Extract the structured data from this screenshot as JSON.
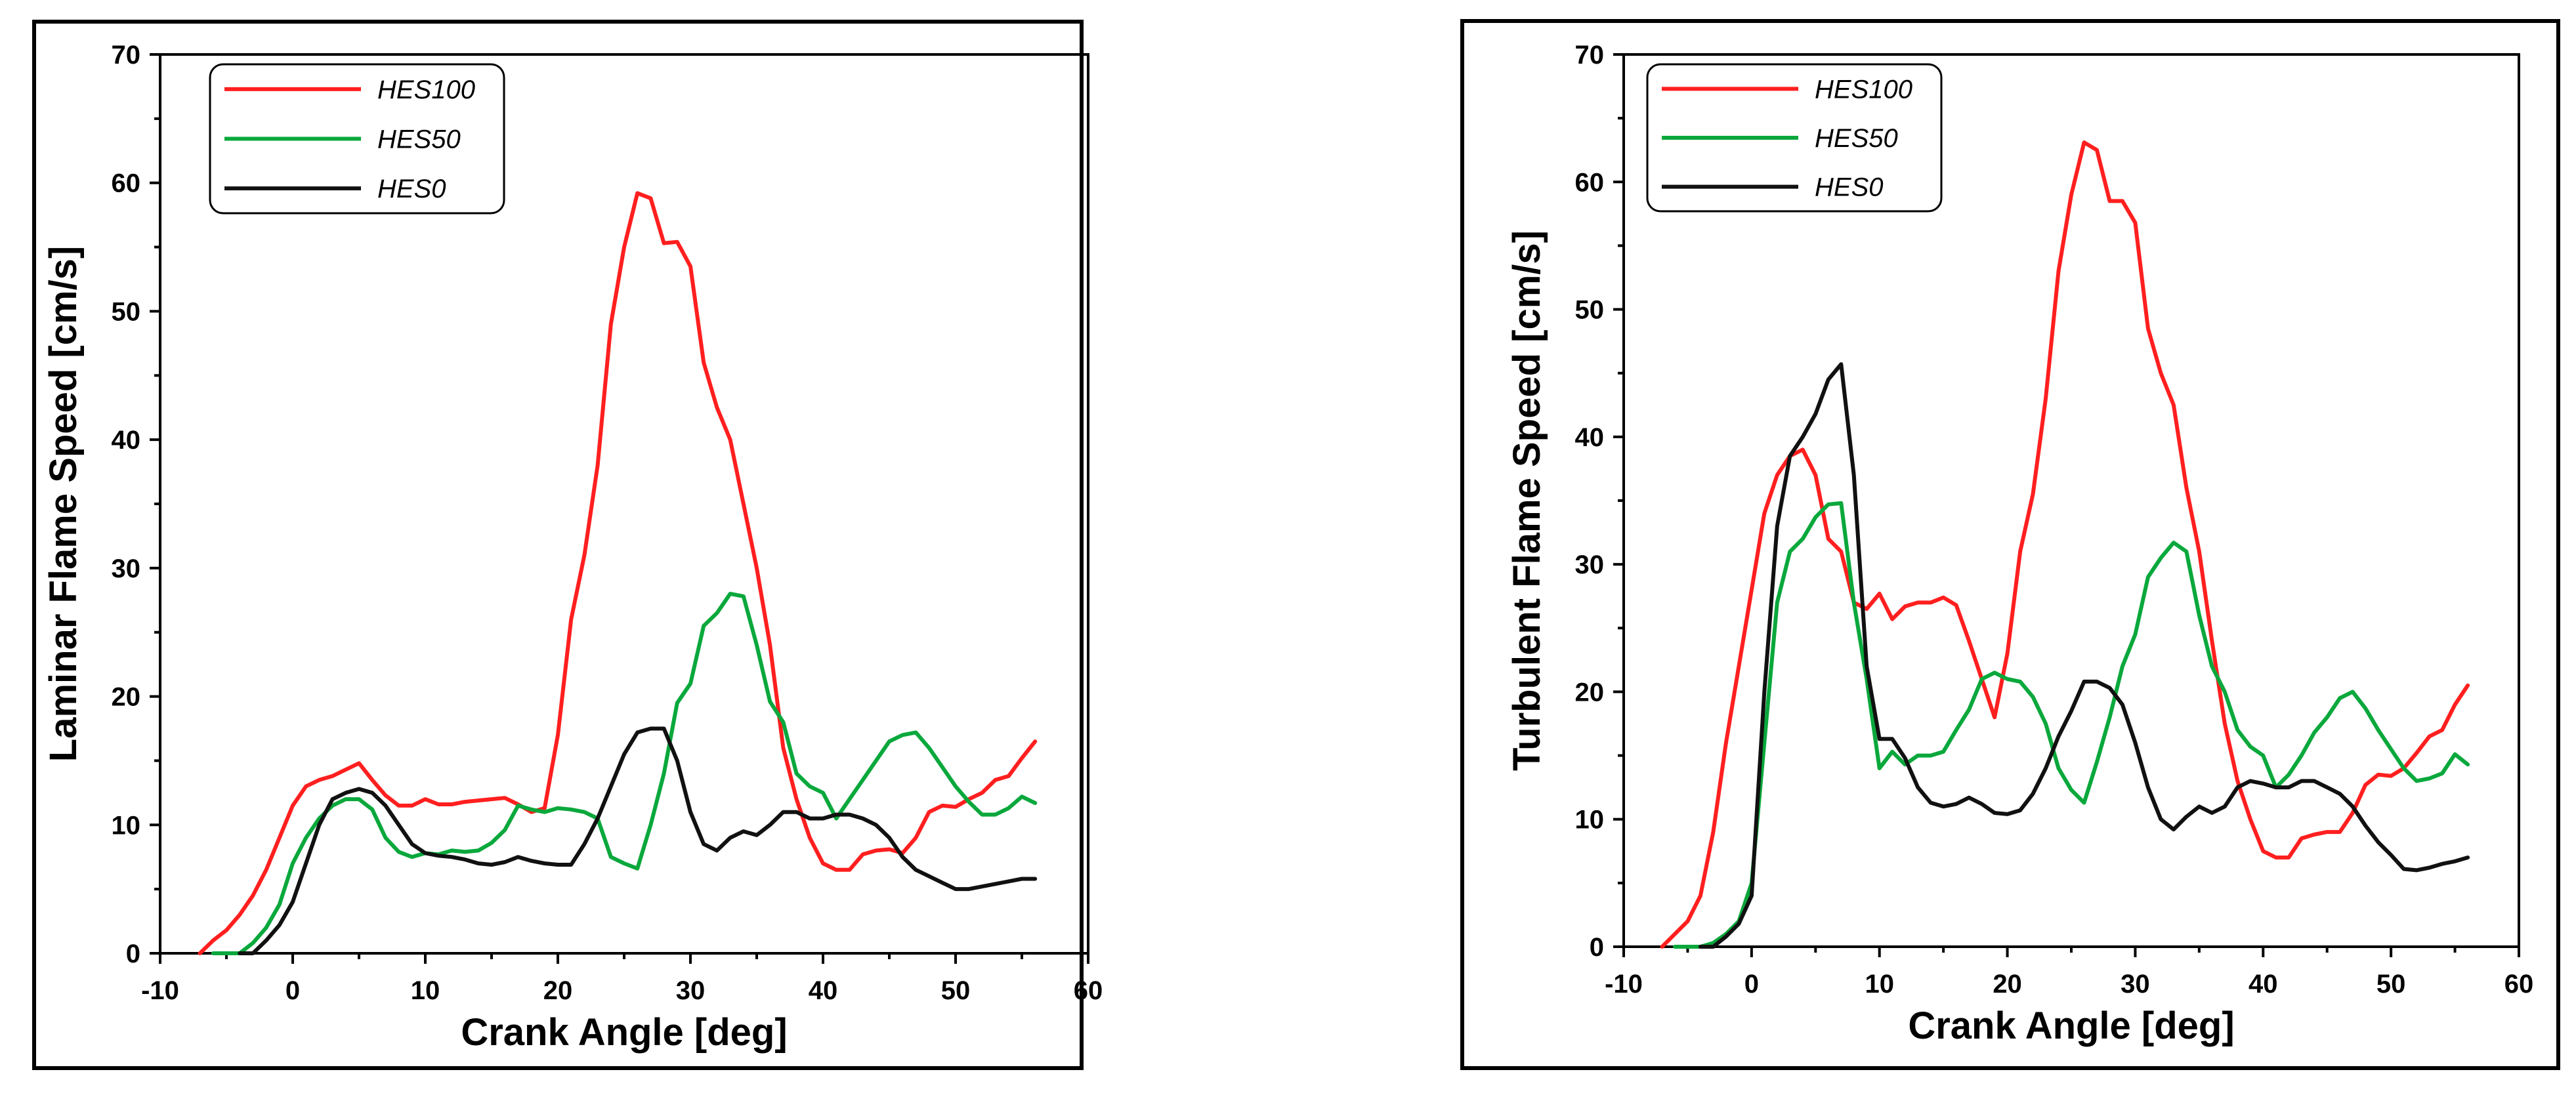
{
  "colors": {
    "HES100": "#ff1f1f",
    "HES50": "#0aa83c",
    "HES0": "#111111"
  },
  "chart_data": [
    {
      "type": "line",
      "xlabel": "Crank Angle [deg]",
      "ylabel": "Laminar Flame Speed [cm/s]",
      "xlim": [
        -10,
        60
      ],
      "ylim": [
        0,
        70
      ],
      "xticks": [
        -10,
        0,
        10,
        20,
        30,
        40,
        50,
        60
      ],
      "yticks": [
        0,
        10,
        20,
        30,
        40,
        50,
        60,
        70
      ],
      "legend": "top-left",
      "series": [
        {
          "name": "HES100",
          "color": "#ff1f1f",
          "x": [
            -7,
            -6,
            -5,
            -4,
            -3,
            -2,
            -1,
            0,
            1,
            2,
            3,
            4,
            5,
            6,
            7,
            8,
            9,
            10,
            11,
            12,
            13,
            14,
            15,
            16,
            17,
            18,
            19,
            20,
            21,
            22,
            23,
            24,
            25,
            26,
            27,
            28,
            29,
            30,
            31,
            32,
            33,
            34,
            35,
            36,
            37,
            38,
            39,
            40,
            41,
            42,
            43,
            44,
            45,
            46,
            47,
            48,
            49,
            50,
            51,
            52,
            53,
            54,
            55,
            56
          ],
          "y": [
            0,
            1,
            1.8,
            3,
            4.5,
            6.5,
            9,
            11.5,
            13,
            13.5,
            13.8,
            14.3,
            14.8,
            13.5,
            12.3,
            11.5,
            11.5,
            12,
            11.6,
            11.6,
            11.8,
            11.9,
            12,
            12.1,
            11.6,
            11,
            11.3,
            17,
            26,
            31,
            38,
            49,
            55,
            59.2,
            58.8,
            55.3,
            55.4,
            53.5,
            46,
            42.5,
            40,
            35,
            30,
            24,
            16,
            12,
            9,
            7,
            6.5,
            6.5,
            7.7,
            8,
            8.1,
            7.8,
            9,
            11,
            11.5,
            11.4,
            12,
            12.5,
            13.5,
            13.8,
            15.2,
            16.5
          ]
        },
        {
          "name": "HES50",
          "color": "#0aa83c",
          "x": [
            -6,
            -5,
            -4,
            -3,
            -2,
            -1,
            0,
            1,
            2,
            3,
            4,
            5,
            6,
            7,
            8,
            9,
            10,
            11,
            12,
            13,
            14,
            15,
            16,
            17,
            18,
            19,
            20,
            21,
            22,
            23,
            24,
            25,
            26,
            27,
            28,
            29,
            30,
            31,
            32,
            33,
            34,
            35,
            36,
            37,
            38,
            39,
            40,
            41,
            42,
            43,
            44,
            45,
            46,
            47,
            48,
            49,
            50,
            51,
            52,
            53,
            54,
            55,
            56
          ],
          "y": [
            0,
            0,
            0,
            0.8,
            2,
            3.8,
            7,
            9,
            10.5,
            11.5,
            12,
            12,
            11.2,
            9,
            7.9,
            7.5,
            7.8,
            7.7,
            8,
            7.9,
            8,
            8.6,
            9.6,
            11.5,
            11.2,
            11,
            11.3,
            11.2,
            11,
            10.5,
            7.5,
            7,
            6.6,
            10,
            14,
            19.5,
            21,
            25.5,
            26.5,
            28,
            27.8,
            24,
            19.6,
            18,
            14,
            13,
            12.5,
            10.5,
            12,
            13.5,
            15,
            16.5,
            17,
            17.2,
            16,
            14.5,
            13,
            11.8,
            10.8,
            10.8,
            11.3,
            12.2,
            11.7
          ]
        },
        {
          "name": "HES0",
          "color": "#111111",
          "x": [
            -4,
            -3,
            -2,
            -1,
            0,
            1,
            2,
            3,
            4,
            5,
            6,
            7,
            8,
            9,
            10,
            11,
            12,
            13,
            14,
            15,
            16,
            17,
            18,
            19,
            20,
            21,
            22,
            23,
            24,
            25,
            26,
            27,
            28,
            29,
            30,
            31,
            32,
            33,
            34,
            35,
            36,
            37,
            38,
            39,
            40,
            41,
            42,
            43,
            44,
            45,
            46,
            47,
            48,
            49,
            50,
            51,
            52,
            53,
            54,
            55,
            56
          ],
          "y": [
            0,
            0,
            1,
            2.2,
            4,
            7,
            10,
            12,
            12.5,
            12.8,
            12.5,
            11.5,
            10,
            8.5,
            7.8,
            7.6,
            7.5,
            7.3,
            7,
            6.9,
            7.1,
            7.5,
            7.2,
            7,
            6.9,
            6.9,
            8.5,
            10.5,
            13,
            15.5,
            17.2,
            17.5,
            17.5,
            15,
            11,
            8.5,
            8,
            9,
            9.5,
            9.2,
            10,
            11,
            11,
            10.5,
            10.5,
            10.8,
            10.8,
            10.5,
            10,
            9,
            7.5,
            6.5,
            6,
            5.5,
            5,
            5,
            5.2,
            5.4,
            5.6,
            5.8,
            5.8
          ]
        }
      ]
    },
    {
      "type": "line",
      "xlabel": "Crank Angle [deg]",
      "ylabel": "Turbulent Flame Speed [cm/s]",
      "xlim": [
        -10,
        60
      ],
      "ylim": [
        0,
        70
      ],
      "xticks": [
        -10,
        0,
        10,
        20,
        30,
        40,
        50,
        60
      ],
      "yticks": [
        0,
        10,
        20,
        30,
        40,
        50,
        60,
        70
      ],
      "legend": "top-left",
      "series": [
        {
          "name": "HES100",
          "color": "#ff1f1f",
          "x": [
            -7,
            -6,
            -5,
            -4,
            -3,
            -2,
            -1,
            0,
            1,
            2,
            3,
            4,
            5,
            6,
            7,
            8,
            9,
            10,
            11,
            12,
            13,
            14,
            15,
            16,
            17,
            18,
            19,
            20,
            21,
            22,
            23,
            24,
            25,
            26,
            27,
            28,
            29,
            30,
            31,
            32,
            33,
            34,
            35,
            36,
            37,
            38,
            39,
            40,
            41,
            42,
            43,
            44,
            45,
            46,
            47,
            48,
            49,
            50,
            51,
            52,
            53,
            54,
            55,
            56
          ],
          "y": [
            0,
            1,
            2,
            4,
            9,
            16,
            22,
            28,
            34,
            37,
            38.5,
            39,
            37,
            32,
            31,
            27,
            26.5,
            27.7,
            25.7,
            26.7,
            27,
            27,
            27.4,
            26.8,
            24,
            21,
            18,
            23,
            31,
            35.5,
            43,
            53,
            59,
            63.1,
            62.5,
            58.5,
            58.5,
            56.8,
            48.5,
            45,
            42.5,
            36,
            31,
            24,
            17.5,
            13,
            10,
            7.5,
            7,
            7,
            8.5,
            8.8,
            9,
            9,
            10.5,
            12.7,
            13.5,
            13.4,
            14,
            15.2,
            16.5,
            17,
            19,
            20.5
          ]
        },
        {
          "name": "HES50",
          "color": "#0aa83c",
          "x": [
            -6,
            -5,
            -4,
            -3,
            -2,
            -1,
            0,
            1,
            2,
            3,
            4,
            5,
            6,
            7,
            8,
            9,
            10,
            11,
            12,
            13,
            14,
            15,
            16,
            17,
            18,
            19,
            20,
            21,
            22,
            23,
            24,
            25,
            26,
            27,
            28,
            29,
            30,
            31,
            32,
            33,
            34,
            35,
            36,
            37,
            38,
            39,
            40,
            41,
            42,
            43,
            44,
            45,
            46,
            47,
            48,
            49,
            50,
            51,
            52,
            53,
            54,
            55,
            56
          ],
          "y": [
            0,
            0,
            0,
            0.3,
            1,
            2,
            5,
            16,
            27,
            31,
            32,
            33.7,
            34.7,
            34.8,
            27,
            21,
            14,
            15.3,
            14.3,
            15,
            15,
            15.3,
            17,
            18.6,
            21,
            21.5,
            21,
            20.8,
            19.6,
            17.5,
            14,
            12.3,
            11.3,
            14.5,
            18,
            22,
            24.5,
            29,
            30.5,
            31.7,
            31,
            26,
            22,
            20,
            17,
            15.7,
            15,
            12.5,
            13.5,
            15,
            16.8,
            18,
            19.5,
            20,
            18.7,
            17,
            15.5,
            14,
            13,
            13.2,
            13.6,
            15.1,
            14.3
          ]
        },
        {
          "name": "HES0",
          "color": "#111111",
          "x": [
            -4,
            -3,
            -2,
            -1,
            0,
            1,
            2,
            3,
            4,
            5,
            6,
            7,
            8,
            9,
            10,
            11,
            12,
            13,
            14,
            15,
            16,
            17,
            18,
            19,
            20,
            21,
            22,
            23,
            24,
            25,
            26,
            27,
            28,
            29,
            30,
            31,
            32,
            33,
            34,
            35,
            36,
            37,
            38,
            39,
            40,
            41,
            42,
            43,
            44,
            45,
            46,
            47,
            48,
            49,
            50,
            51,
            52,
            53,
            54,
            55,
            56
          ],
          "y": [
            0,
            0,
            0.8,
            1.8,
            4,
            20,
            33,
            38.5,
            40,
            41.8,
            44.5,
            45.7,
            37,
            22,
            16.3,
            16.3,
            14.8,
            12.5,
            11.3,
            11,
            11.2,
            11.7,
            11.2,
            10.5,
            10.4,
            10.7,
            12,
            14,
            16.5,
            18.5,
            20.8,
            20.8,
            20.3,
            19,
            16,
            12.5,
            10,
            9.2,
            10.2,
            11,
            10.5,
            11,
            12.5,
            13,
            12.8,
            12.5,
            12.5,
            13,
            13,
            12.5,
            12,
            11,
            9.5,
            8.2,
            7.2,
            6.1,
            6,
            6.2,
            6.5,
            6.7,
            7
          ]
        }
      ]
    }
  ]
}
